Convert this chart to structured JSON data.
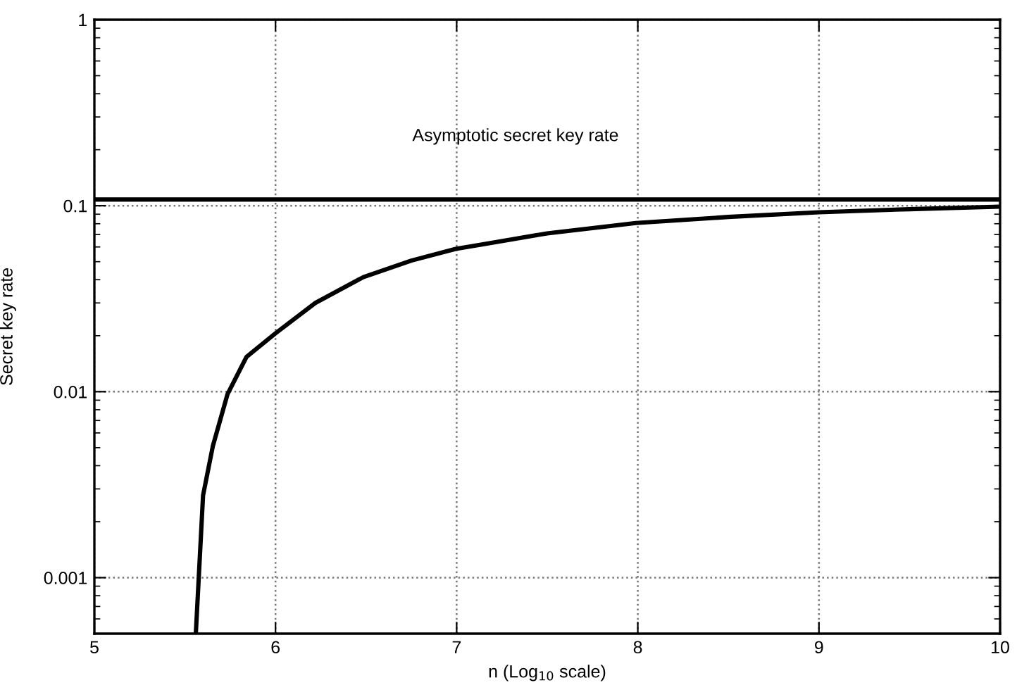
{
  "chart_data": {
    "type": "line",
    "xlabel": "n (Log$_{10}$ scale)",
    "ylabel": "Secret key rate",
    "series": [
      {
        "color": "#000000",
        "x": [
          5.56,
          5.6,
          5.654,
          5.735,
          5.84,
          6.0,
          6.22,
          6.485,
          6.75,
          6.995,
          7.18,
          7.5,
          7.99,
          8.5,
          9.0,
          9.5,
          10
        ],
        "values": [
          0.0005,
          0.00277,
          0.0051,
          0.0097,
          0.0154,
          0.0206,
          0.03,
          0.0413,
          0.0507,
          0.0586,
          0.0628,
          0.071,
          0.0807,
          0.087,
          0.0922,
          0.0958,
          0.0988
        ]
      }
    ],
    "ref_lines": [
      {
        "axis": "y",
        "value": 0.108,
        "label": "Asymptotic secret key rate",
        "color": "#000000",
        "line_style": "solid"
      }
    ],
    "log": "y",
    "xlim": [
      5,
      10
    ],
    "ylim": [
      0.0005,
      1
    ],
    "xticks": [
      5,
      6,
      7,
      8,
      9,
      10
    ],
    "yticks": [
      0.001,
      0.01,
      0.1,
      1
    ],
    "grid": true,
    "line_style": "solid",
    "marker": "none"
  }
}
